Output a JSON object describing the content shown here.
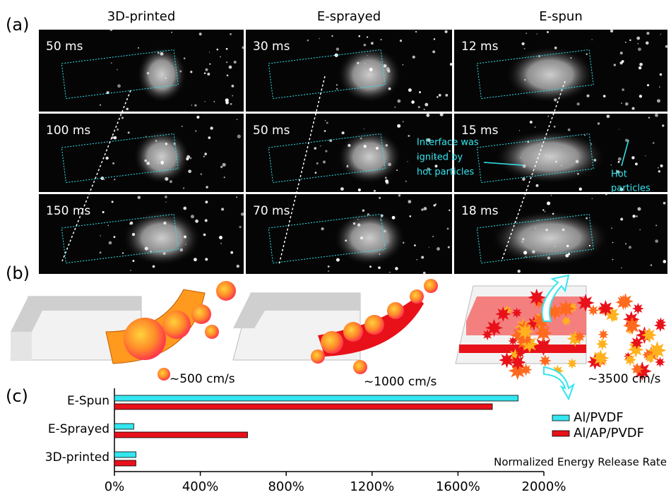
{
  "panel_a": {
    "label": "(a)",
    "columns": [
      "3D-printed",
      "E-sprayed",
      "E-spun"
    ],
    "times": [
      [
        "50 ms",
        "30 ms",
        "12 ms"
      ],
      [
        "100 ms",
        "50 ms",
        "15 ms"
      ],
      [
        "150 ms",
        "70 ms",
        "18 ms"
      ]
    ],
    "annotation_interface": [
      "Interface was",
      "ignited by",
      "hot particles"
    ],
    "annotation_hot": [
      "Hot",
      "particles"
    ]
  },
  "panel_b": {
    "label": "(b)",
    "speeds": [
      "~500 cm/s",
      "~1000 cm/s",
      "~3500 cm/s"
    ]
  },
  "panel_c": {
    "label": "(c)"
  },
  "chart_data": {
    "type": "hbar",
    "categories": [
      "E-Spun",
      "E-Sprayed",
      "3D-printed"
    ],
    "series": [
      {
        "name": "Al/PVDF",
        "color": "#33e6f0",
        "values": [
          1880,
          90,
          100
        ]
      },
      {
        "name": "Al/AP/PVDF",
        "color": "#e8111a",
        "values": [
          1760,
          620,
          100
        ]
      }
    ],
    "xlim": [
      0,
      2000
    ],
    "xticks": [
      {
        "value": 0,
        "label": "0%"
      },
      {
        "value": 400,
        "label": "400%"
      },
      {
        "value": 800,
        "label": "800%"
      },
      {
        "value": 1200,
        "label": "1200%"
      },
      {
        "value": 1600,
        "label": "1600%"
      },
      {
        "value": 2000,
        "label": "2000%"
      }
    ],
    "annotation": "Normalized Energy Release Rate",
    "legend": "right"
  }
}
